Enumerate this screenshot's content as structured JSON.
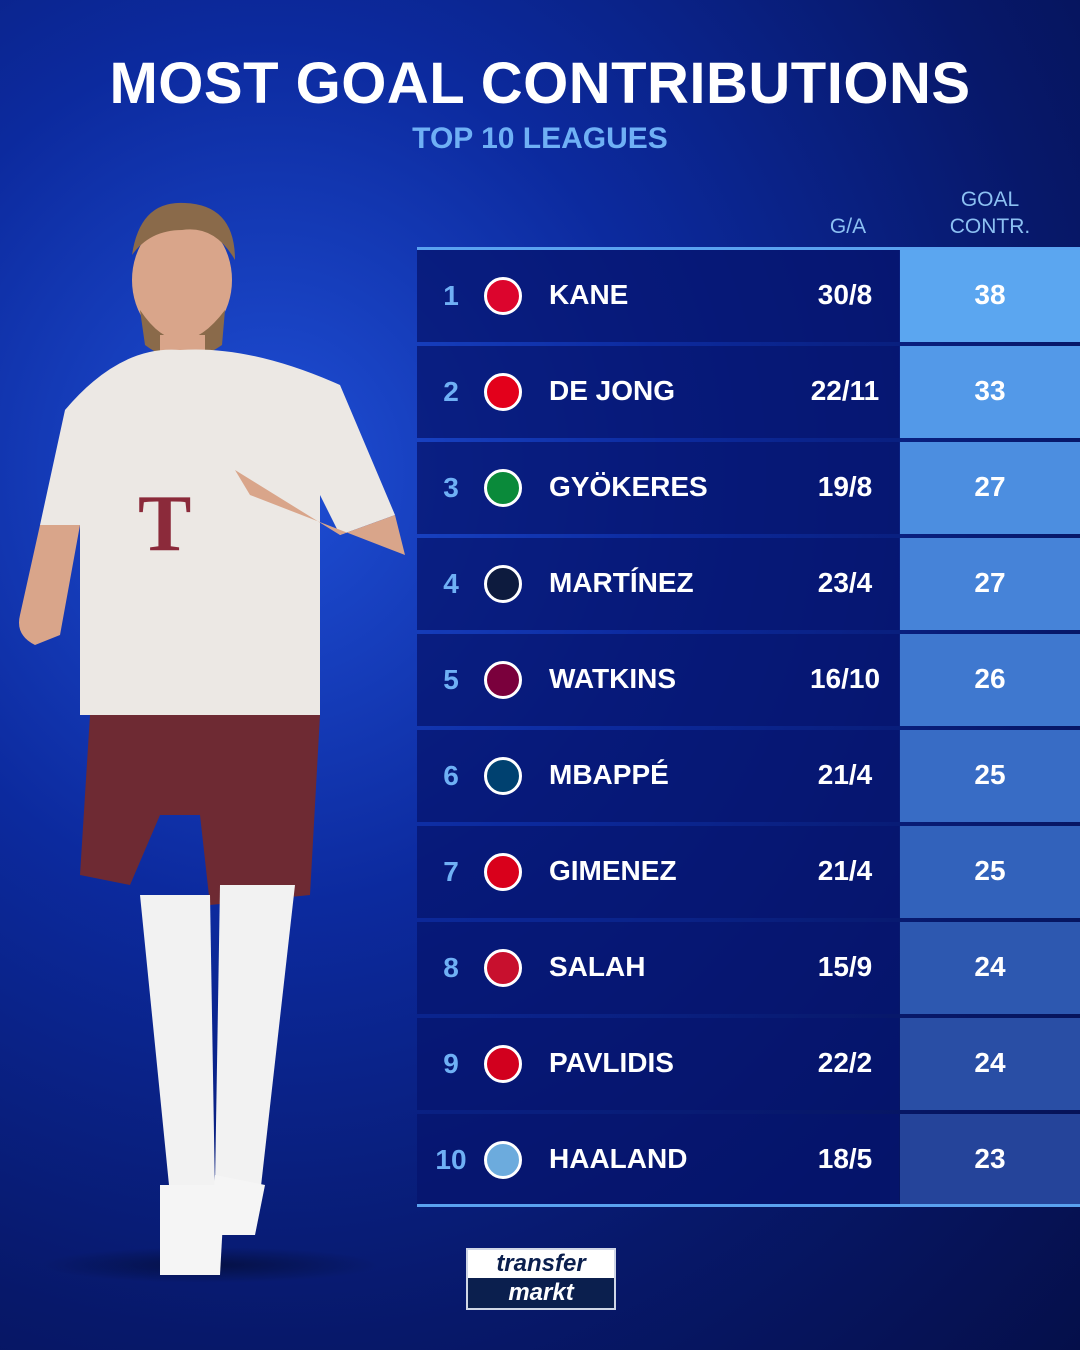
{
  "title": "MOST GOAL CONTRIBUTIONS",
  "subtitle": "TOP 10 LEAGUES",
  "columns": {
    "ga": "G/A",
    "goal_contr_line1": "GOAL",
    "goal_contr_line2": "CONTR."
  },
  "rows": [
    {
      "rank": "1",
      "player": "KANE",
      "club_icon": "bayern-munich-crest",
      "ga": "30/8",
      "contributions": "38",
      "color": "#5ba6f0"
    },
    {
      "rank": "2",
      "player": "DE JONG",
      "club_icon": "psv-crest",
      "ga": "22/11",
      "contributions": "33",
      "color": "#5399e8"
    },
    {
      "rank": "3",
      "player": "GYÖKERES",
      "club_icon": "sporting-cp-crest",
      "ga": "19/8",
      "contributions": "27",
      "color": "#4c8ee0"
    },
    {
      "rank": "4",
      "player": "MARTÍNEZ",
      "club_icon": "inter-crest",
      "ga": "23/4",
      "contributions": "27",
      "color": "#4683d8"
    },
    {
      "rank": "5",
      "player": "WATKINS",
      "club_icon": "aston-villa-crest",
      "ga": "16/10",
      "contributions": "26",
      "color": "#3f78cf"
    },
    {
      "rank": "6",
      "player": "MBAPPÉ",
      "club_icon": "psg-crest",
      "ga": "21/4",
      "contributions": "25",
      "color": "#386cc5"
    },
    {
      "rank": "7",
      "player": "GIMENEZ",
      "club_icon": "feyenoord-crest",
      "ga": "21/4",
      "contributions": "25",
      "color": "#3262bb"
    },
    {
      "rank": "8",
      "player": "SALAH",
      "club_icon": "liverpool-crest",
      "ga": "15/9",
      "contributions": "24",
      "color": "#2d58b0"
    },
    {
      "rank": "9",
      "player": "PAVLIDIS",
      "club_icon": "az-alkmaar-crest",
      "ga": "22/2",
      "contributions": "24",
      "color": "#294ea5"
    },
    {
      "rank": "10",
      "player": "HAALAND",
      "club_icon": "manchester-city-crest",
      "ga": "18/5",
      "contributions": "23",
      "color": "#25449a"
    }
  ],
  "crest_colors": [
    "#dc052d",
    "#e3001b",
    "#0a8a3a",
    "#0d1b3e",
    "#7a003c",
    "#004170",
    "#d9001b",
    "#c8102e",
    "#d2001e",
    "#6cabdd"
  ],
  "logo": {
    "line1": "transfer",
    "line2": "markt"
  }
}
